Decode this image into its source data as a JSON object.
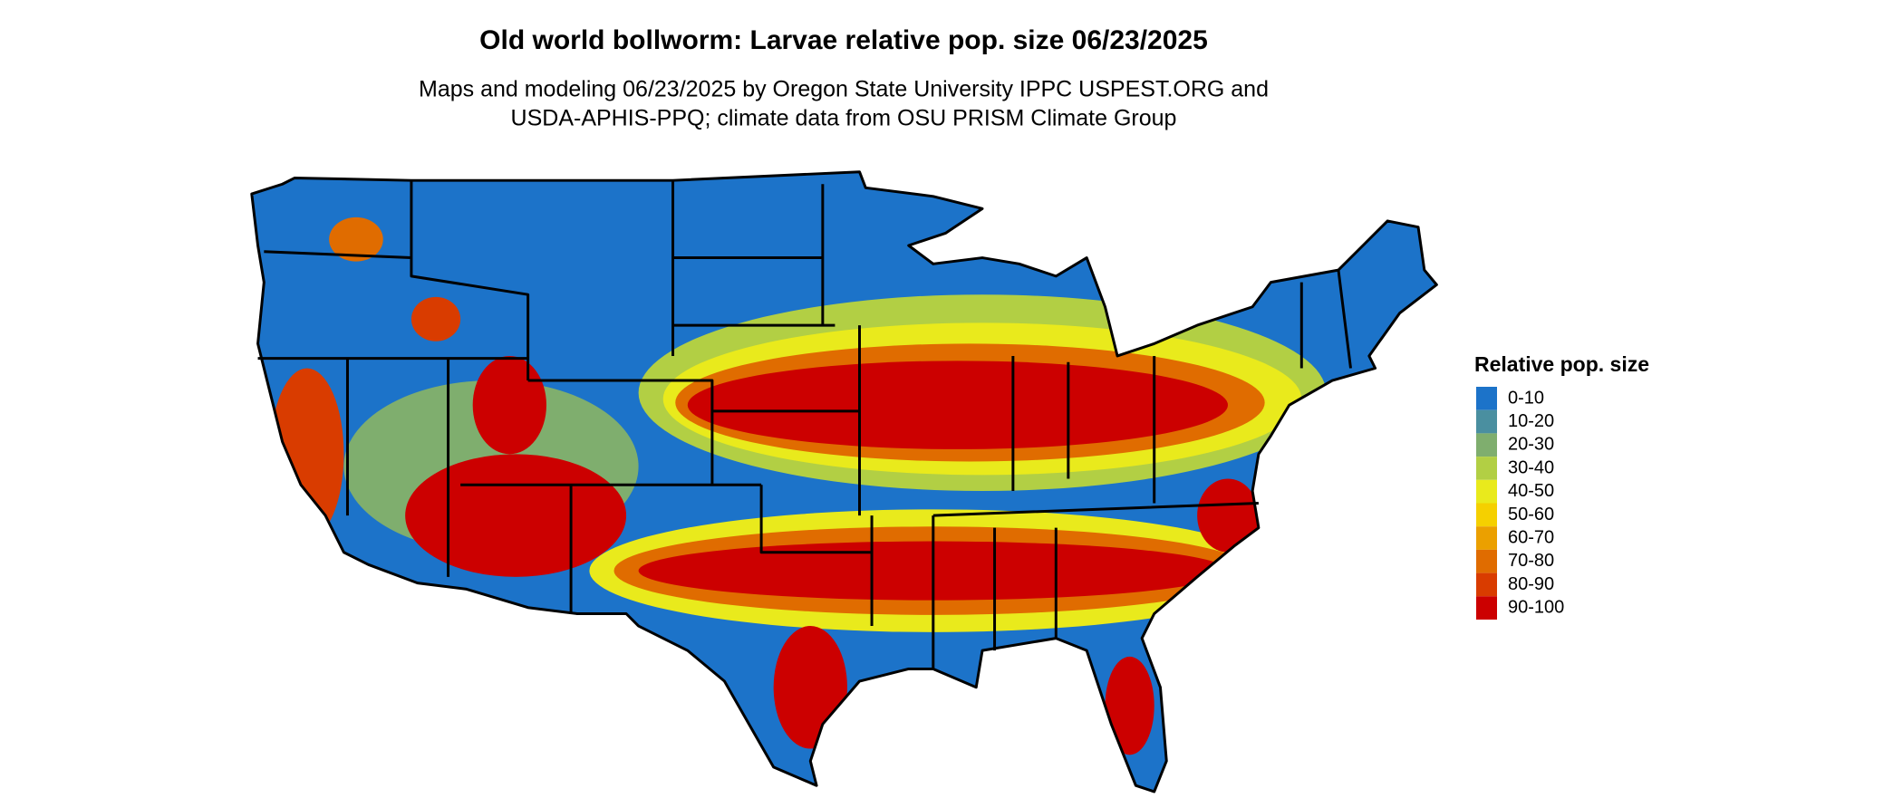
{
  "header": {
    "title": "Old world bollworm: Larvae relative pop. size 06/23/2025",
    "subtitle": [
      "Maps and modeling 06/23/2025 by Oregon State University IPPC USPEST.ORG and",
      "USDA-APHIS-PPQ; climate data from OSU PRISM Climate Group"
    ]
  },
  "legend": {
    "title": "Relative pop. size",
    "items": [
      {
        "label": "0-10",
        "color": "#1c73c9"
      },
      {
        "label": "10-20",
        "color": "#4a8fa0"
      },
      {
        "label": "20-30",
        "color": "#7fae6e"
      },
      {
        "label": "30-40",
        "color": "#b2cf44"
      },
      {
        "label": "40-50",
        "color": "#e9ea1c"
      },
      {
        "label": "50-60",
        "color": "#f5d000"
      },
      {
        "label": "60-70",
        "color": "#eba000"
      },
      {
        "label": "70-80",
        "color": "#e06c00"
      },
      {
        "label": "80-90",
        "color": "#d93c00"
      },
      {
        "label": "90-100",
        "color": "#cc0000"
      }
    ]
  }
}
